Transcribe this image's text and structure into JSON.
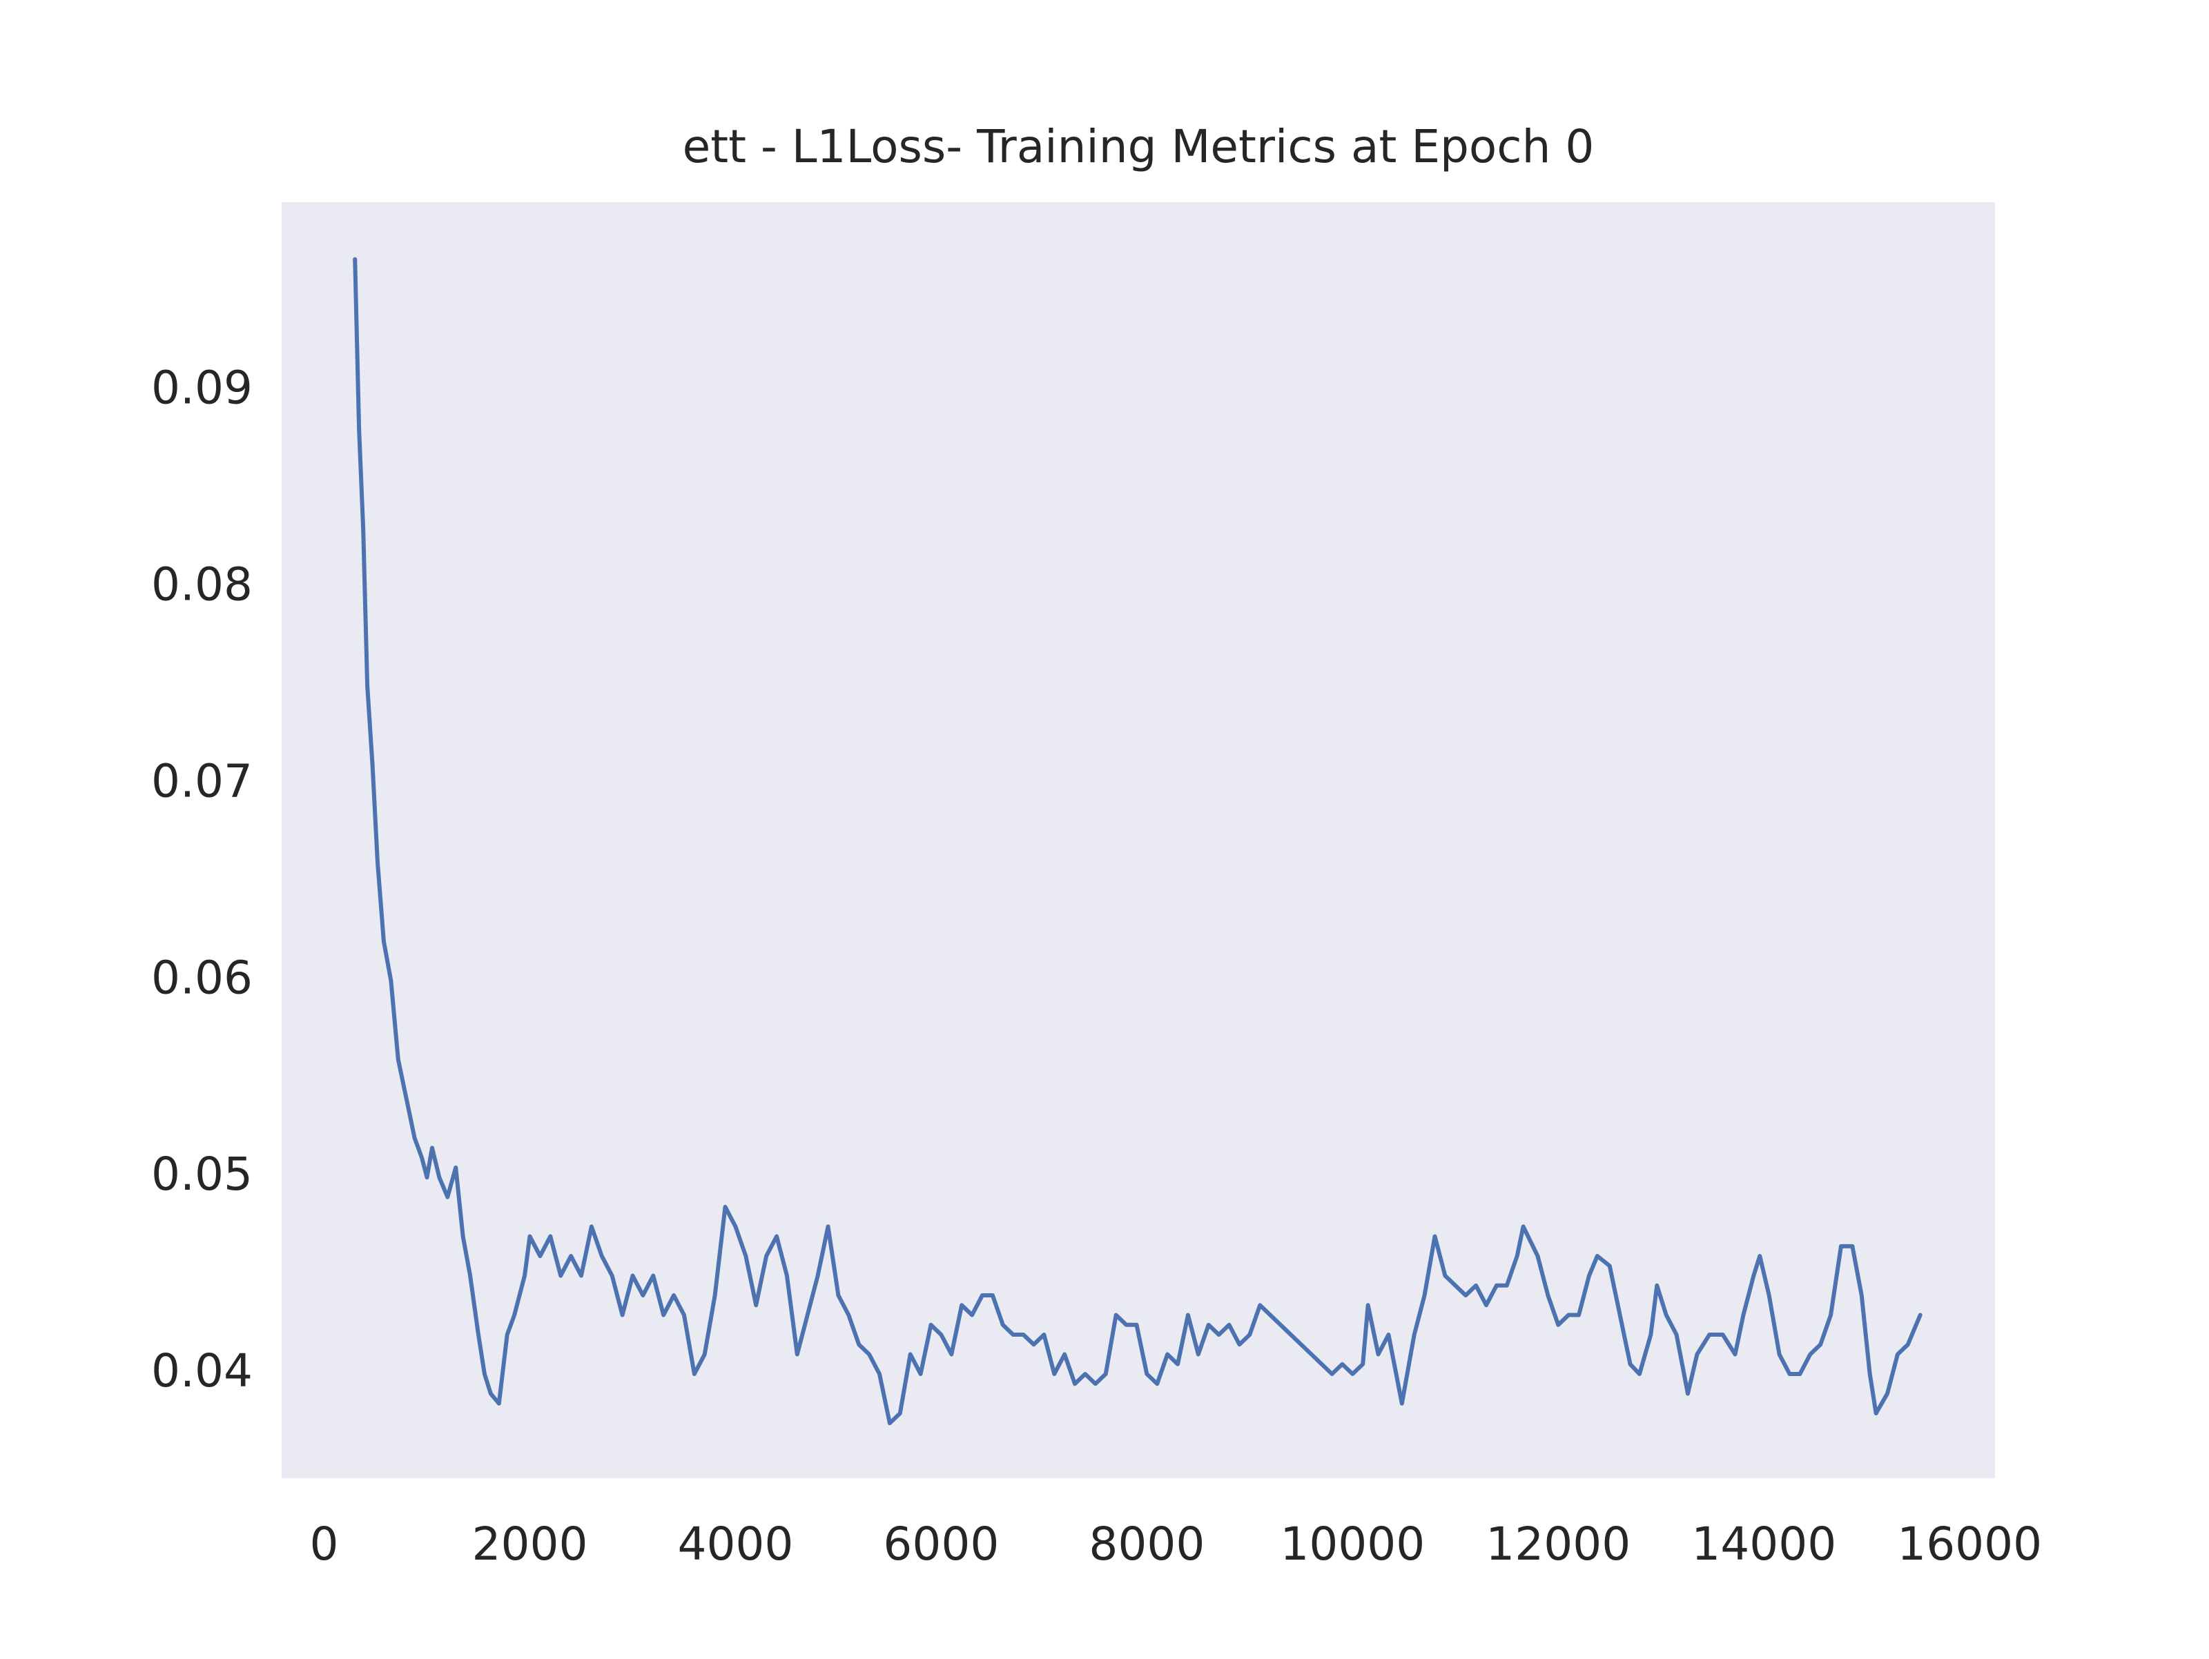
{
  "chart_data": {
    "type": "line",
    "title": "ett - L1Loss- Training Metrics at Epoch 0",
    "x": [
      300,
      340,
      380,
      420,
      470,
      520,
      580,
      650,
      720,
      800,
      880,
      950,
      1000,
      1050,
      1120,
      1200,
      1280,
      1350,
      1420,
      1500,
      1560,
      1620,
      1700,
      1780,
      1850,
      1950,
      2000,
      2100,
      2200,
      2300,
      2400,
      2500,
      2600,
      2700,
      2800,
      2900,
      3000,
      3100,
      3200,
      3300,
      3400,
      3500,
      3600,
      3700,
      3800,
      3900,
      4000,
      4100,
      4200,
      4300,
      4400,
      4500,
      4600,
      4700,
      4800,
      4900,
      5000,
      5100,
      5200,
      5300,
      5400,
      5500,
      5600,
      5700,
      5800,
      5900,
      6000,
      6100,
      6200,
      6300,
      6400,
      6500,
      6600,
      6700,
      6800,
      6900,
      7000,
      7100,
      7200,
      7300,
      7400,
      7500,
      7600,
      7700,
      7800,
      7900,
      8000,
      8100,
      8200,
      8300,
      8400,
      8500,
      8600,
      8700,
      8800,
      8900,
      9000,
      9100,
      9200,
      9300,
      9400,
      9500,
      9600,
      9700,
      9800,
      9900,
      10000,
      10100,
      10150,
      10250,
      10350,
      10480,
      10600,
      10700,
      10800,
      10900,
      11000,
      11100,
      11200,
      11300,
      11400,
      11500,
      11600,
      11660,
      11800,
      11900,
      12000,
      12100,
      12200,
      12300,
      12380,
      12500,
      12600,
      12700,
      12790,
      12900,
      12960,
      13050,
      13150,
      13260,
      13350,
      13470,
      13600,
      13720,
      13800,
      13900,
      13960,
      14050,
      14150,
      14250,
      14350,
      14450,
      14550,
      14650,
      14750,
      14860,
      14950,
      15030,
      15090,
      15200,
      15300,
      15400,
      15520
    ],
    "values": [
      0.0967,
      0.088,
      0.083,
      0.075,
      0.071,
      0.066,
      0.062,
      0.06,
      0.056,
      0.054,
      0.052,
      0.051,
      0.05,
      0.0515,
      0.05,
      0.049,
      0.0505,
      0.047,
      0.045,
      0.042,
      0.04,
      0.039,
      0.0385,
      0.042,
      0.043,
      0.045,
      0.047,
      0.046,
      0.047,
      0.045,
      0.046,
      0.045,
      0.0475,
      0.046,
      0.045,
      0.043,
      0.045,
      0.044,
      0.045,
      0.043,
      0.044,
      0.043,
      0.04,
      0.041,
      0.044,
      0.0485,
      0.0475,
      0.046,
      0.0435,
      0.046,
      0.047,
      0.045,
      0.041,
      0.043,
      0.045,
      0.0475,
      0.044,
      0.043,
      0.0415,
      0.041,
      0.04,
      0.0375,
      0.038,
      0.041,
      0.04,
      0.0425,
      0.042,
      0.041,
      0.0435,
      0.043,
      0.044,
      0.044,
      0.0425,
      0.042,
      0.042,
      0.0415,
      0.042,
      0.04,
      0.041,
      0.0395,
      0.04,
      0.0395,
      0.04,
      0.043,
      0.0425,
      0.0425,
      0.04,
      0.0395,
      0.041,
      0.0405,
      0.043,
      0.041,
      0.0425,
      0.042,
      0.0425,
      0.0415,
      0.042,
      0.0435,
      0.043,
      0.0425,
      0.042,
      0.0415,
      0.041,
      0.0405,
      0.04,
      0.0405,
      0.04,
      0.0405,
      0.0435,
      0.041,
      0.042,
      0.0385,
      0.042,
      0.044,
      0.047,
      0.045,
      0.0445,
      0.044,
      0.0445,
      0.0435,
      0.0445,
      0.0445,
      0.046,
      0.0475,
      0.046,
      0.044,
      0.0425,
      0.043,
      0.043,
      0.045,
      0.046,
      0.0455,
      0.043,
      0.0405,
      0.04,
      0.042,
      0.0445,
      0.043,
      0.042,
      0.039,
      0.041,
      0.042,
      0.042,
      0.041,
      0.043,
      0.045,
      0.046,
      0.044,
      0.041,
      0.04,
      0.04,
      0.041,
      0.0415,
      0.043,
      0.0465,
      0.0465,
      0.044,
      0.04,
      0.038,
      0.039,
      0.041,
      0.0415,
      0.043
    ],
    "color": "#4c72b0",
    "background": "#eaeaf2",
    "xlim": [
      -413,
      16247
    ],
    "ylim": [
      0.0347,
      0.0996
    ],
    "xticks": [
      0,
      2000,
      4000,
      6000,
      8000,
      10000,
      12000,
      14000,
      16000
    ],
    "yticks": [
      0.04,
      0.05,
      0.06,
      0.07,
      0.08,
      0.09
    ],
    "grid": false
  }
}
